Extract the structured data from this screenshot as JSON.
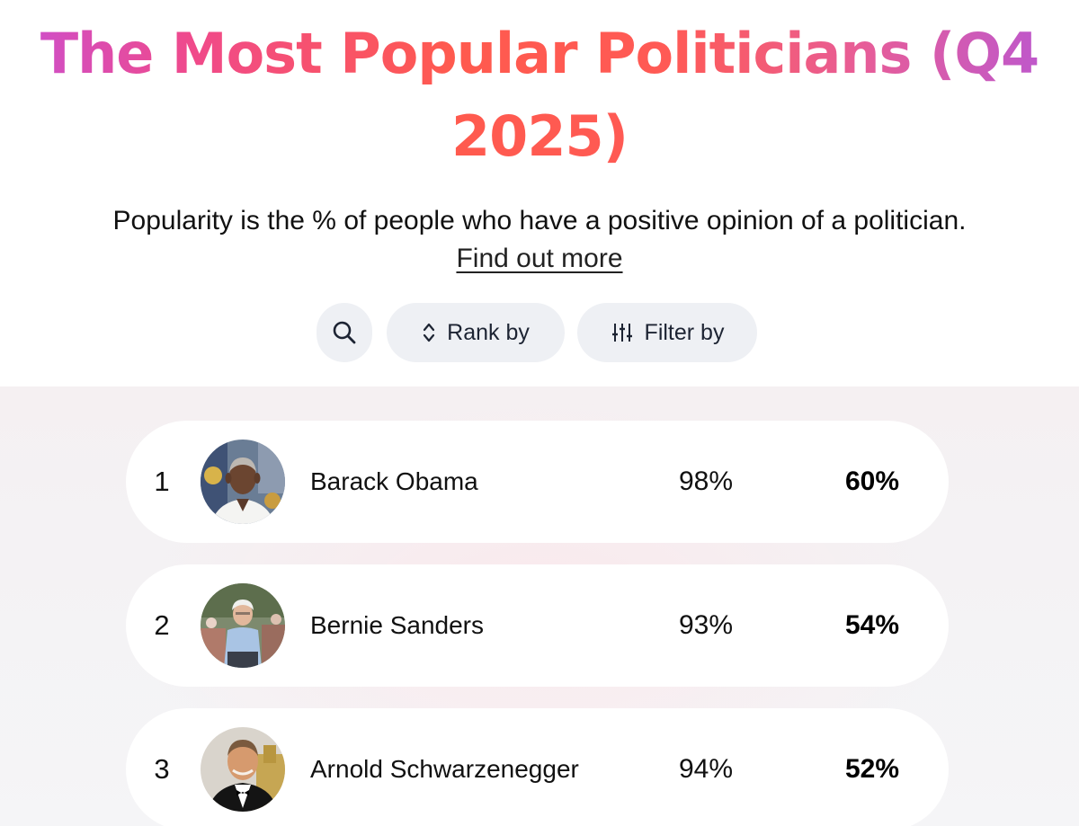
{
  "header": {
    "title_line1": "The Most Popular Politicians (Q4",
    "title_line2": "2025)",
    "subtitle": "Popularity is the % of people who have a positive opinion of a politician.",
    "find_out_more": "Find out more"
  },
  "toolbar": {
    "search_icon": "search-icon",
    "rank_label": "Rank by",
    "rank_icon": "sort-arrows-icon",
    "filter_label": "Filter by",
    "filter_icon": "sliders-icon"
  },
  "rows": [
    {
      "rank": "1",
      "name": "Barack Obama",
      "fame": "98%",
      "popularity": "60%",
      "avatar": "portrait-photo"
    },
    {
      "rank": "2",
      "name": "Bernie Sanders",
      "fame": "93%",
      "popularity": "54%",
      "avatar": "portrait-photo"
    },
    {
      "rank": "3",
      "name": "Arnold Schwarzenegger",
      "fame": "94%",
      "popularity": "52%",
      "avatar": "portrait-photo"
    }
  ],
  "colors": {
    "accent_pink": "#f04a8a",
    "accent_coral": "#ff5a4e",
    "accent_purple": "#c94fd3",
    "pill_bg": "#eef0f4"
  }
}
